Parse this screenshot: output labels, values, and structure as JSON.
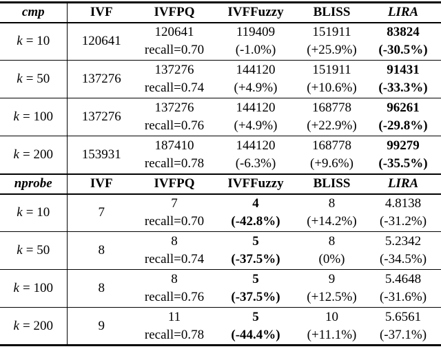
{
  "colors": {
    "text": "#000000",
    "background": "#ffffff",
    "rule": "#000000"
  },
  "sections": [
    {
      "metric": "cmp",
      "columns": [
        "IVF",
        "IVFPQ",
        "IVFFuzzy",
        "BLISS",
        "LIRA"
      ],
      "rows": [
        {
          "label": {
            "var": "k",
            "rest": "= 10"
          },
          "ivf": "120641",
          "ivfpq": {
            "value": "120641",
            "sub": "recall=0.70"
          },
          "ivffuzzy": {
            "value": "119409",
            "sub": "(-1.0%)"
          },
          "bliss": {
            "value": "151911",
            "sub": "(+25.9%)"
          },
          "lira": {
            "value": "83824",
            "sub": "(-30.5%)"
          }
        },
        {
          "label": {
            "var": "k",
            "rest": "= 50"
          },
          "ivf": "137276",
          "ivfpq": {
            "value": "137276",
            "sub": "recall=0.74"
          },
          "ivffuzzy": {
            "value": "144120",
            "sub": "(+4.9%)"
          },
          "bliss": {
            "value": "151911",
            "sub": "(+10.6%)"
          },
          "lira": {
            "value": "91431",
            "sub": "(-33.3%)"
          }
        },
        {
          "label": {
            "var": "k",
            "rest": "= 100"
          },
          "ivf": "137276",
          "ivfpq": {
            "value": "137276",
            "sub": "recall=0.76"
          },
          "ivffuzzy": {
            "value": "144120",
            "sub": "(+4.9%)"
          },
          "bliss": {
            "value": "168778",
            "sub": "(+22.9%)"
          },
          "lira": {
            "value": "96261",
            "sub": "(-29.8%)"
          }
        },
        {
          "label": {
            "var": "k",
            "rest": "= 200"
          },
          "ivf": "153931",
          "ivfpq": {
            "value": "187410",
            "sub": "recall=0.78"
          },
          "ivffuzzy": {
            "value": "144120",
            "sub": "(-6.3%)"
          },
          "bliss": {
            "value": "168778",
            "sub": "(+9.6%)"
          },
          "lira": {
            "value": "99279",
            "sub": "(-35.5%)"
          }
        }
      ]
    },
    {
      "metric": "nprobe",
      "columns": [
        "IVF",
        "IVFPQ",
        "IVFFuzzy",
        "BLISS",
        "LIRA"
      ],
      "rows": [
        {
          "label": {
            "var": "k",
            "rest": "= 10"
          },
          "ivf": "7",
          "ivfpq": {
            "value": "7",
            "sub": "recall=0.70"
          },
          "ivffuzzy": {
            "value": "4",
            "sub": "(-42.8%)"
          },
          "bliss": {
            "value": "8",
            "sub": "(+14.2%)"
          },
          "lira": {
            "value": "4.8138",
            "sub": "(-31.2%)"
          }
        },
        {
          "label": {
            "var": "k",
            "rest": "= 50"
          },
          "ivf": "8",
          "ivfpq": {
            "value": "8",
            "sub": "recall=0.74"
          },
          "ivffuzzy": {
            "value": "5",
            "sub": "(-37.5%)"
          },
          "bliss": {
            "value": "8",
            "sub": "(0%)"
          },
          "lira": {
            "value": "5.2342",
            "sub": "(-34.5%)"
          }
        },
        {
          "label": {
            "var": "k",
            "rest": "= 100"
          },
          "ivf": "8",
          "ivfpq": {
            "value": "8",
            "sub": "recall=0.76"
          },
          "ivffuzzy": {
            "value": "5",
            "sub": "(-37.5%)"
          },
          "bliss": {
            "value": "9",
            "sub": "(+12.5%)"
          },
          "lira": {
            "value": "5.4648",
            "sub": "(-31.6%)"
          }
        },
        {
          "label": {
            "var": "k",
            "rest": "= 200"
          },
          "ivf": "9",
          "ivfpq": {
            "value": "11",
            "sub": "recall=0.78"
          },
          "ivffuzzy": {
            "value": "5",
            "sub": "(-44.4%)"
          },
          "bliss": {
            "value": "10",
            "sub": "(+11.1%)"
          },
          "lira": {
            "value": "5.6561",
            "sub": "(-37.1%)"
          }
        }
      ]
    }
  ]
}
